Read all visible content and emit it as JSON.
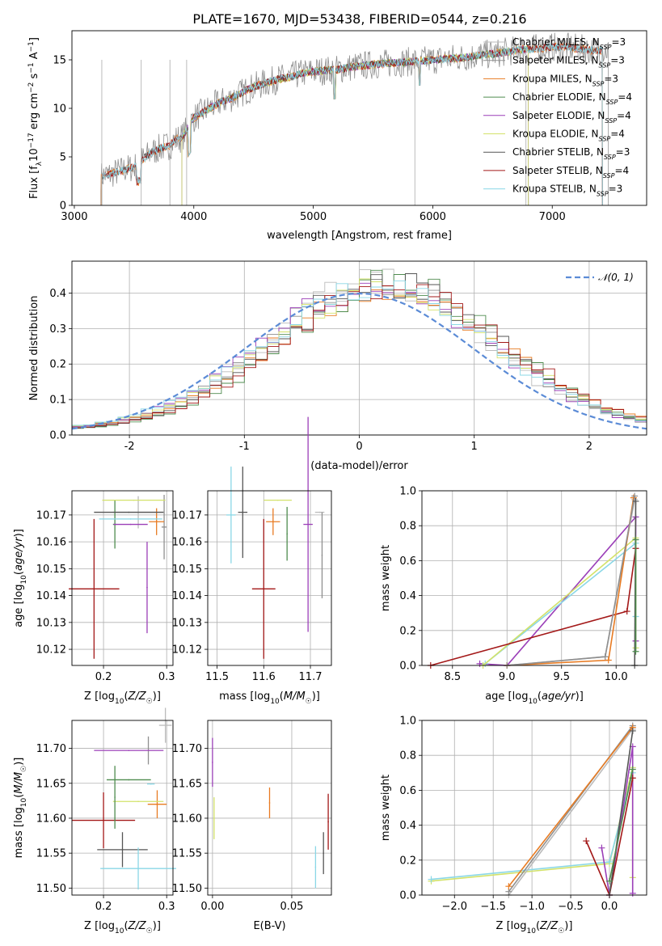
{
  "title": "PLATE=1670, MJD=53438, FIBERID=0544, z=0.216",
  "colors": {
    "Chabrier MILES": "#bbbbbb",
    "Salpeter MILES": "#8f8f8f",
    "Kroupa MILES": "#e87b22",
    "Chabrier ELODIE": "#4f8c4f",
    "Salpeter ELODIE": "#9b3fb8",
    "Kroupa ELODIE": "#d3e26a",
    "Chabrier STELIB": "#555555",
    "Salpeter STELIB": "#a31818",
    "Kroupa STELIB": "#8ad7e6"
  },
  "chart_data": [
    {
      "id": "spectrum",
      "type": "line",
      "title": "PLATE=1670, MJD=53438, FIBERID=0544, z=0.216",
      "xlabel": "wavelength [Angstrom, rest frame]",
      "ylabel": "Flux [f_λ 10^-17 erg cm^-2 s^-1 A^-1]",
      "xlim": [
        2980,
        7790
      ],
      "ylim": [
        0,
        18
      ],
      "xticks": [
        3000,
        4000,
        5000,
        6000,
        7000
      ],
      "yticks": [
        0,
        5,
        10,
        15
      ],
      "grid": false,
      "legend_position": "right",
      "legend": [
        "Chabrier MILES, N_SSP=3",
        "Salpeter MILES, N_SSP=3",
        "Kroupa MILES, N_SSP=3",
        "Chabrier ELODIE, N_SSP=4",
        "Salpeter ELODIE, N_SSP=4",
        "Kroupa ELODIE, N_SSP=4",
        "Chabrier STELIB, N_SSP=3",
        "Salpeter STELIB, N_SSP=4",
        "Kroupa STELIB, N_SSP=3"
      ],
      "x": [
        3220,
        3250,
        3300,
        3350,
        3400,
        3450,
        3500,
        3550,
        3600,
        3650,
        3700,
        3750,
        3800,
        3850,
        3900,
        3950,
        4000,
        4100,
        4200,
        4300,
        4400,
        4500,
        4600,
        4700,
        4800,
        4900,
        5000,
        5100,
        5200,
        5300,
        5400,
        5500,
        5600,
        5700,
        5800,
        5900,
        6000,
        6100,
        6200,
        6300,
        6400,
        6500,
        6600,
        6700,
        6800,
        6900,
        7000,
        7100,
        7200,
        7300,
        7400
      ],
      "y": [
        3.0,
        3.1,
        3.2,
        3.4,
        3.6,
        3.8,
        3.9,
        4.5,
        5.0,
        5.5,
        5.8,
        6.0,
        6.2,
        6.8,
        7.0,
        8.0,
        9.0,
        9.8,
        10.5,
        11.0,
        11.6,
        12.2,
        12.6,
        13.0,
        13.2,
        13.6,
        13.8,
        13.9,
        14.0,
        14.2,
        14.4,
        14.5,
        14.6,
        14.7,
        14.8,
        14.9,
        15.0,
        15.1,
        15.2,
        15.3,
        15.5,
        15.6,
        15.8,
        16.0,
        16.1,
        16.2,
        16.3,
        16.3,
        16.2,
        16.0,
        16.0
      ]
    },
    {
      "id": "residuals",
      "type": "line",
      "xlabel": "(data-model)/error",
      "ylabel": "Normed distribution",
      "xlim": [
        -2.5,
        2.5
      ],
      "ylim": [
        0,
        0.49
      ],
      "xticks": [
        -2,
        -1,
        0,
        1,
        2
      ],
      "yticks": [
        0.0,
        0.1,
        0.2,
        0.3,
        0.4
      ],
      "grid": true,
      "legend_position": "top-right",
      "legend": [
        "𝒩(0, 1)"
      ],
      "series": [
        {
          "name": "𝒩(0, 1)",
          "style": "dashed",
          "x": [
            -2.5,
            2.5
          ]
        }
      ]
    },
    {
      "id": "age_vs_Z",
      "type": "scatter",
      "xlabel": "Z [log10(Z/Z☉)]",
      "ylabel": "age  [log10(age/yr)]",
      "xlim": [
        0.15,
        0.31
      ],
      "ylim": [
        10.114,
        10.179
      ],
      "xticks": [
        0.2,
        0.3
      ],
      "xticklabels": [
        "0.2",
        "0.3"
      ],
      "yticks": [
        10.12,
        10.13,
        10.14,
        10.15,
        10.16,
        10.17
      ],
      "grid": true,
      "points": [
        {
          "model": "Chabrier MILES",
          "x": 0.255,
          "y": 10.171,
          "xerr": 0.04,
          "yerr": 0.006
        },
        {
          "model": "Salpeter MILES",
          "x": 0.296,
          "y": 10.1655,
          "xerr": 0.004,
          "yerr": 0.012
        },
        {
          "model": "Kroupa MILES",
          "x": 0.284,
          "y": 10.1675,
          "xerr": 0.012,
          "yerr": 0.005
        },
        {
          "model": "Chabrier ELODIE",
          "x": 0.218,
          "y": 10.1665,
          "xerr": 0.003,
          "yerr": 0.009
        },
        {
          "model": "Salpeter ELODIE",
          "x": 0.243,
          "y": 10.1665,
          "xerr": 0.027,
          "yerr": 0.0
        },
        {
          "model": "Salpeter ELODIE",
          "x": 0.269,
          "y": 10.143,
          "xerr": 0.0,
          "yerr": 0.017
        },
        {
          "model": "Kroupa ELODIE",
          "x": 0.248,
          "y": 10.1755,
          "xerr": 0.05,
          "yerr": 0.0
        },
        {
          "model": "Chabrier STELIB",
          "x": 0.24,
          "y": 10.171,
          "xerr": 0.055,
          "yerr": 0.0
        },
        {
          "model": "Salpeter STELIB",
          "x": 0.185,
          "y": 10.1425,
          "xerr": 0.04,
          "yerr": 0.026
        },
        {
          "model": "Kroupa STELIB",
          "x": 0.243,
          "y": 10.1685,
          "xerr": 0.05,
          "yerr": 0.0
        }
      ]
    },
    {
      "id": "age_vs_mass",
      "type": "scatter",
      "xlabel": "mass [log10(M/M☉)]",
      "ylabel": "",
      "xlim": [
        11.48,
        11.745
      ],
      "ylim": [
        10.114,
        10.179
      ],
      "xticks": [
        11.5,
        11.6,
        11.7
      ],
      "xticklabels": [
        "11.5",
        "11.6",
        "11.7"
      ],
      "yticks": [
        10.12,
        10.13,
        10.14,
        10.15,
        10.16,
        10.17
      ],
      "grid": true,
      "points": [
        {
          "model": "Chabrier MILES",
          "x": 11.72,
          "y": 10.171,
          "xerr": 0.01,
          "yerr": 0.0
        },
        {
          "model": "Salpeter MILES",
          "x": 11.725,
          "y": 10.155,
          "xerr": 0.0,
          "yerr": 0.016
        },
        {
          "model": "Kroupa MILES",
          "x": 11.62,
          "y": 10.1675,
          "xerr": 0.015,
          "yerr": 0.005
        },
        {
          "model": "Chabrier ELODIE",
          "x": 11.65,
          "y": 10.163,
          "xerr": 0.0,
          "yerr": 0.01
        },
        {
          "model": "Salpeter ELODIE",
          "x": 11.695,
          "y": 10.1665,
          "xerr": 0.01,
          "yerr": 0.04
        },
        {
          "model": "Kroupa ELODIE",
          "x": 11.63,
          "y": 10.1755,
          "xerr": 0.03,
          "yerr": 0.0
        },
        {
          "model": "Chabrier STELIB",
          "x": 11.555,
          "y": 10.171,
          "xerr": 0.01,
          "yerr": 0.017
        },
        {
          "model": "Salpeter STELIB",
          "x": 11.6,
          "y": 10.1425,
          "xerr": 0.025,
          "yerr": 0.026
        },
        {
          "model": "Kroupa STELIB",
          "x": 11.53,
          "y": 10.17,
          "xerr": 0.01,
          "yerr": 0.018
        }
      ]
    },
    {
      "id": "weight_vs_age",
      "type": "line",
      "xlabel": "age  [log10(age/yr)]",
      "ylabel": "mass weight",
      "xlim": [
        8.22,
        10.28
      ],
      "ylim": [
        0,
        1.0
      ],
      "xticks": [
        8.5,
        9.0,
        9.5,
        10.0
      ],
      "xticklabels": [
        "8.5",
        "9.0",
        "9.5",
        "10.0"
      ],
      "yticks": [
        0.0,
        0.2,
        0.4,
        0.6,
        0.8,
        1.0
      ],
      "grid": true,
      "series": [
        {
          "model": "Salpeter ELODIE",
          "x": [
            8.75,
            9.0,
            10.18,
            10.18
          ],
          "y": [
            0.01,
            0.0,
            0.85,
            0.14
          ]
        },
        {
          "model": "Kroupa STELIB",
          "x": [
            8.8,
            10.18,
            10.18
          ],
          "y": [
            0.01,
            0.7,
            0.28
          ]
        },
        {
          "model": "Kroupa ELODIE",
          "x": [
            8.78,
            10.18,
            10.18
          ],
          "y": [
            0.0,
            0.73,
            0.1
          ]
        },
        {
          "model": "Salpeter STELIB",
          "x": [
            8.3,
            10.1,
            10.18
          ],
          "y": [
            0.0,
            0.31,
            0.67
          ]
        },
        {
          "model": "Chabrier MILES",
          "x": [
            9.0,
            9.9,
            10.17
          ],
          "y": [
            0.0,
            0.05,
            0.95
          ]
        },
        {
          "model": "Kroupa MILES",
          "x": [
            9.0,
            9.93,
            10.16
          ],
          "y": [
            0.0,
            0.03,
            0.96
          ]
        },
        {
          "model": "Salpeter MILES",
          "x": [
            9.0,
            9.9,
            10.17
          ],
          "y": [
            0.0,
            0.05,
            0.97
          ]
        },
        {
          "model": "Chabrier STELIB",
          "x": [
            10.17,
            10.18
          ],
          "y": [
            0.0,
            0.94
          ]
        },
        {
          "model": "Chabrier ELODIE",
          "x": [
            10.18,
            10.18
          ],
          "y": [
            0.08,
            0.72
          ]
        }
      ]
    },
    {
      "id": "mass_vs_Z",
      "type": "scatter",
      "xlabel": "Z [log10(Z/Z☉)]",
      "ylabel": "mass [log10(M/M☉)]",
      "xlim": [
        0.15,
        0.31
      ],
      "ylim": [
        11.49,
        11.74
      ],
      "xticks": [
        0.2,
        0.3
      ],
      "xticklabels": [
        "0.2",
        "0.3"
      ],
      "yticks": [
        11.5,
        11.55,
        11.6,
        11.65,
        11.7
      ],
      "grid": true,
      "points": [
        {
          "model": "Chabrier MILES",
          "x": 0.298,
          "y": 11.733,
          "xerr": 0.01,
          "yerr": 0.025
        },
        {
          "model": "Salpeter MILES",
          "x": 0.271,
          "y": 11.697,
          "xerr": 0.0,
          "yerr": 0.02
        },
        {
          "model": "Kroupa MILES",
          "x": 0.285,
          "y": 11.62,
          "xerr": 0.015,
          "yerr": 0.02
        },
        {
          "model": "Chabrier ELODIE",
          "x": 0.24,
          "y": 11.655,
          "xerr": 0.035,
          "yerr": 0.0
        },
        {
          "model": "Salpeter ELODIE",
          "x": 0.24,
          "y": 11.697,
          "xerr": 0.055,
          "yerr": 0.0
        },
        {
          "model": "Kroupa ELODIE",
          "x": 0.255,
          "y": 11.624,
          "xerr": 0.04,
          "yerr": 0.0
        },
        {
          "model": "Chabrier STELIB",
          "x": 0.23,
          "y": 11.555,
          "xerr": 0.04,
          "yerr": 0.025
        },
        {
          "model": "Salpeter STELIB",
          "x": 0.2,
          "y": 11.597,
          "xerr": 0.05,
          "yerr": 0.04
        },
        {
          "model": "Kroupa STELIB",
          "x": 0.255,
          "y": 11.528,
          "xerr": 0.06,
          "yerr": 0.03
        },
        {
          "model": "Chabrier ELODIE",
          "x": 0.218,
          "y": 11.63,
          "xerr": 0.0,
          "yerr": 0.045
        },
        {
          "model": "Kroupa STELIB",
          "x": 0.275,
          "y": 11.649,
          "xerr": 0.006,
          "yerr": 0.0
        }
      ]
    },
    {
      "id": "mass_vs_EBV",
      "type": "scatter",
      "xlabel": "E(B-V)",
      "ylabel": "",
      "xlim": [
        -0.003,
        0.075
      ],
      "ylim": [
        11.49,
        11.74
      ],
      "xticks": [
        0.0,
        0.05
      ],
      "xticklabels": [
        "0.00",
        "0.05"
      ],
      "yticks": [
        11.5,
        11.55,
        11.6,
        11.65,
        11.7
      ],
      "grid": true,
      "points": [
        {
          "model": "Salpeter ELODIE",
          "x": 0.0,
          "y": 11.68,
          "xerr": 0.0,
          "yerr": 0.035
        },
        {
          "model": "Kroupa ELODIE",
          "x": 0.001,
          "y": 11.6,
          "xerr": 0.0,
          "yerr": 0.03
        },
        {
          "model": "Kroupa MILES",
          "x": 0.036,
          "y": 11.622,
          "xerr": 0.0,
          "yerr": 0.022
        },
        {
          "model": "Kroupa STELIB",
          "x": 0.065,
          "y": 11.53,
          "xerr": 0.0,
          "yerr": 0.03
        },
        {
          "model": "Chabrier STELIB",
          "x": 0.07,
          "y": 11.55,
          "xerr": 0.0,
          "yerr": 0.03
        },
        {
          "model": "Salpeter STELIB",
          "x": 0.073,
          "y": 11.595,
          "xerr": 0.0,
          "yerr": 0.04
        }
      ]
    },
    {
      "id": "weight_vs_Z",
      "type": "line",
      "xlabel": "Z [log10(Z/Z☉)]",
      "ylabel": "mass weight",
      "xlim": [
        -2.42,
        0.48
      ],
      "ylim": [
        0,
        1.0
      ],
      "xticks": [
        -2.0,
        -1.5,
        -1.0,
        -0.5,
        0.0
      ],
      "xticklabels": [
        "−2.0",
        "−1.5",
        "−1.0",
        "−0.5",
        "0.0"
      ],
      "yticks": [
        0.0,
        0.2,
        0.4,
        0.6,
        0.8,
        1.0
      ],
      "grid": true,
      "series": [
        {
          "model": "Kroupa ELODIE",
          "x": [
            -2.3,
            0.0,
            0.3,
            0.3
          ],
          "y": [
            0.08,
            0.18,
            0.73,
            0.1
          ]
        },
        {
          "model": "Kroupa STELIB",
          "x": [
            -2.3,
            0.0,
            0.3
          ],
          "y": [
            0.09,
            0.19,
            0.7
          ]
        },
        {
          "model": "Chabrier MILES",
          "x": [
            -1.3,
            0.3
          ],
          "y": [
            0.0,
            0.95
          ]
        },
        {
          "model": "Salpeter MILES",
          "x": [
            -1.3,
            0.3
          ],
          "y": [
            0.02,
            0.97
          ]
        },
        {
          "model": "Kroupa MILES",
          "x": [
            -1.3,
            0.3
          ],
          "y": [
            0.05,
            0.96
          ]
        },
        {
          "model": "Salpeter ELODIE",
          "x": [
            -0.1,
            0.0,
            0.3,
            0.3
          ],
          "y": [
            0.27,
            0.0,
            0.85,
            0.01
          ]
        },
        {
          "model": "Salpeter STELIB",
          "x": [
            -0.3,
            0.0,
            0.3
          ],
          "y": [
            0.31,
            0.0,
            0.67
          ]
        },
        {
          "model": "Chabrier STELIB",
          "x": [
            0.0,
            0.3
          ],
          "y": [
            0.0,
            0.94
          ]
        },
        {
          "model": "Chabrier ELODIE",
          "x": [
            0.0,
            0.3
          ],
          "y": [
            0.08,
            0.72
          ]
        }
      ]
    }
  ]
}
